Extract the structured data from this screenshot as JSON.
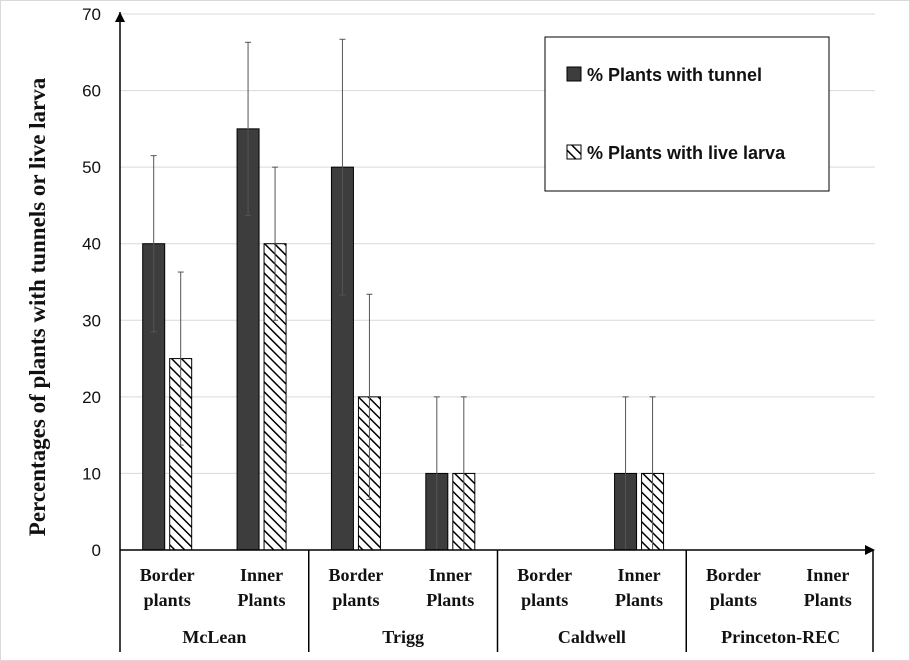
{
  "chart_data": {
    "type": "bar",
    "ylabel": "Percentages of plants with tunnels or live larva",
    "ylim": [
      0,
      70
    ],
    "yticks": [
      0,
      10,
      20,
      30,
      40,
      50,
      60,
      70
    ],
    "grid": true,
    "legend_position": "top-right",
    "groups": [
      {
        "name": "McLean",
        "categories": [
          "Border plants",
          "Inner Plants"
        ]
      },
      {
        "name": "Trigg",
        "categories": [
          "Border plants",
          "Inner Plants"
        ]
      },
      {
        "name": "Caldwell",
        "categories": [
          "Border plants",
          "Inner Plants"
        ]
      },
      {
        "name": "Princeton-REC",
        "categories": [
          "Border plants",
          "Inner Plants"
        ]
      }
    ],
    "category_label_lines": [
      [
        "Border",
        "plants"
      ],
      [
        "Inner",
        "Plants"
      ]
    ],
    "series": [
      {
        "name": "% Plants with tunnel",
        "pattern": "solid",
        "color": "#3d3d3d",
        "values": [
          40,
          55,
          50,
          10,
          0,
          10,
          0,
          0
        ],
        "error": [
          11.5,
          11.3,
          16.7,
          10,
          0,
          10,
          0,
          0
        ]
      },
      {
        "name": "% Plants with live larva",
        "pattern": "hatch",
        "color": "#000000",
        "values": [
          25,
          40,
          20,
          10,
          0,
          10,
          0,
          0
        ],
        "error": [
          11.3,
          10,
          13.4,
          10,
          0,
          10,
          0,
          0
        ]
      }
    ]
  }
}
